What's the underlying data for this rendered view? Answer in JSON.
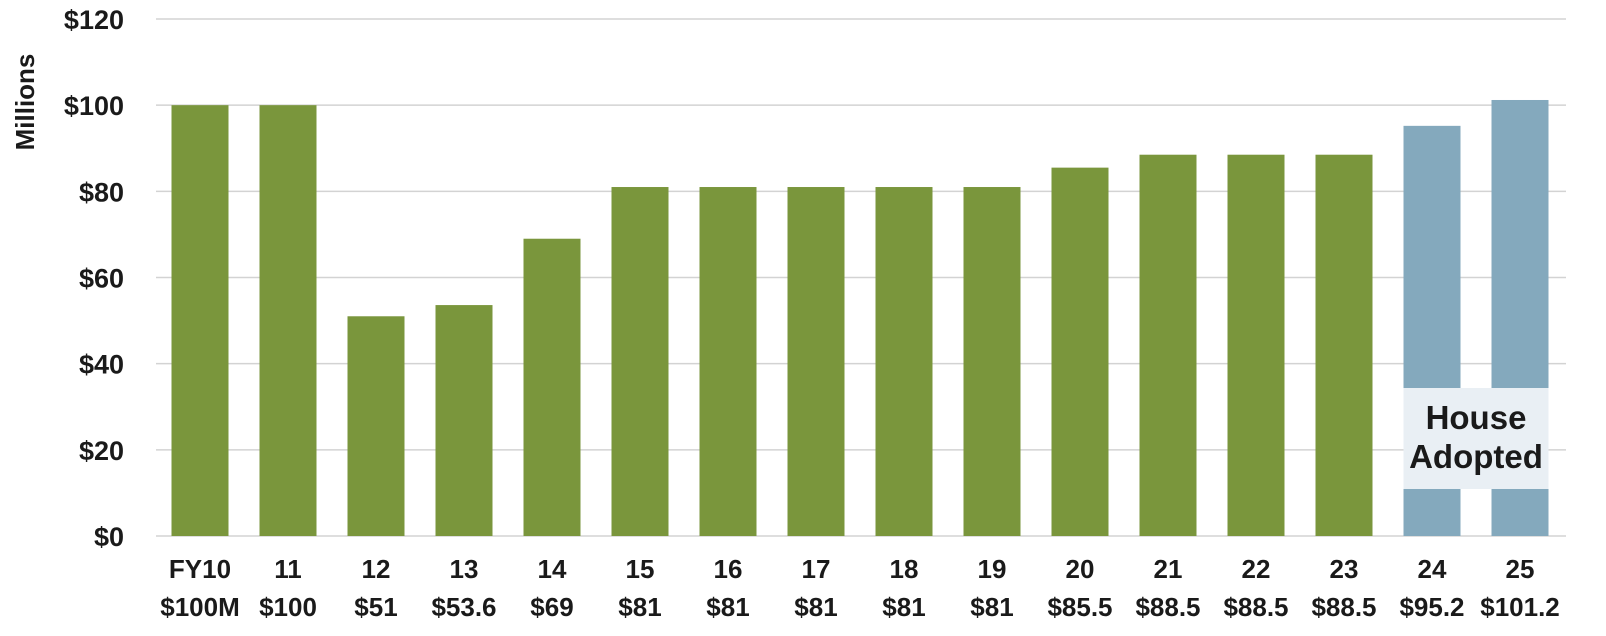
{
  "chart_data": {
    "type": "bar",
    "title": "",
    "ylabel": "Millions",
    "xlabel": "",
    "ylim": [
      0,
      120
    ],
    "yticks": [
      0,
      20,
      40,
      60,
      80,
      100,
      120
    ],
    "ytick_labels": [
      "$0",
      "$20",
      "$40",
      "$60",
      "$80",
      "$100",
      "$120"
    ],
    "grid": true,
    "categories": [
      "FY10",
      "11",
      "12",
      "13",
      "14",
      "15",
      "16",
      "17",
      "18",
      "19",
      "20",
      "21",
      "22",
      "23",
      "24",
      "25"
    ],
    "value_labels": [
      "$100M",
      "$100",
      "$51",
      "$53.6",
      "$69",
      "$81",
      "$81",
      "$81",
      "$81",
      "$81",
      "$85.5",
      "$88.5",
      "$88.5",
      "$88.5",
      "$95.2",
      "$101.2"
    ],
    "values": [
      100,
      100,
      51,
      53.6,
      69,
      81,
      81,
      81,
      81,
      81,
      85.5,
      88.5,
      88.5,
      88.5,
      95.2,
      101.2
    ],
    "series_status": [
      "enacted",
      "enacted",
      "enacted",
      "enacted",
      "enacted",
      "enacted",
      "enacted",
      "enacted",
      "enacted",
      "enacted",
      "enacted",
      "enacted",
      "enacted",
      "enacted",
      "house",
      "house"
    ],
    "annotation": {
      "lines": [
        "House",
        "Adopted"
      ]
    },
    "colors": {
      "enacted": "#7a963c",
      "house": "#84a9bd",
      "grid": "#d3d3d3",
      "overlay": "#e9eff4"
    }
  }
}
